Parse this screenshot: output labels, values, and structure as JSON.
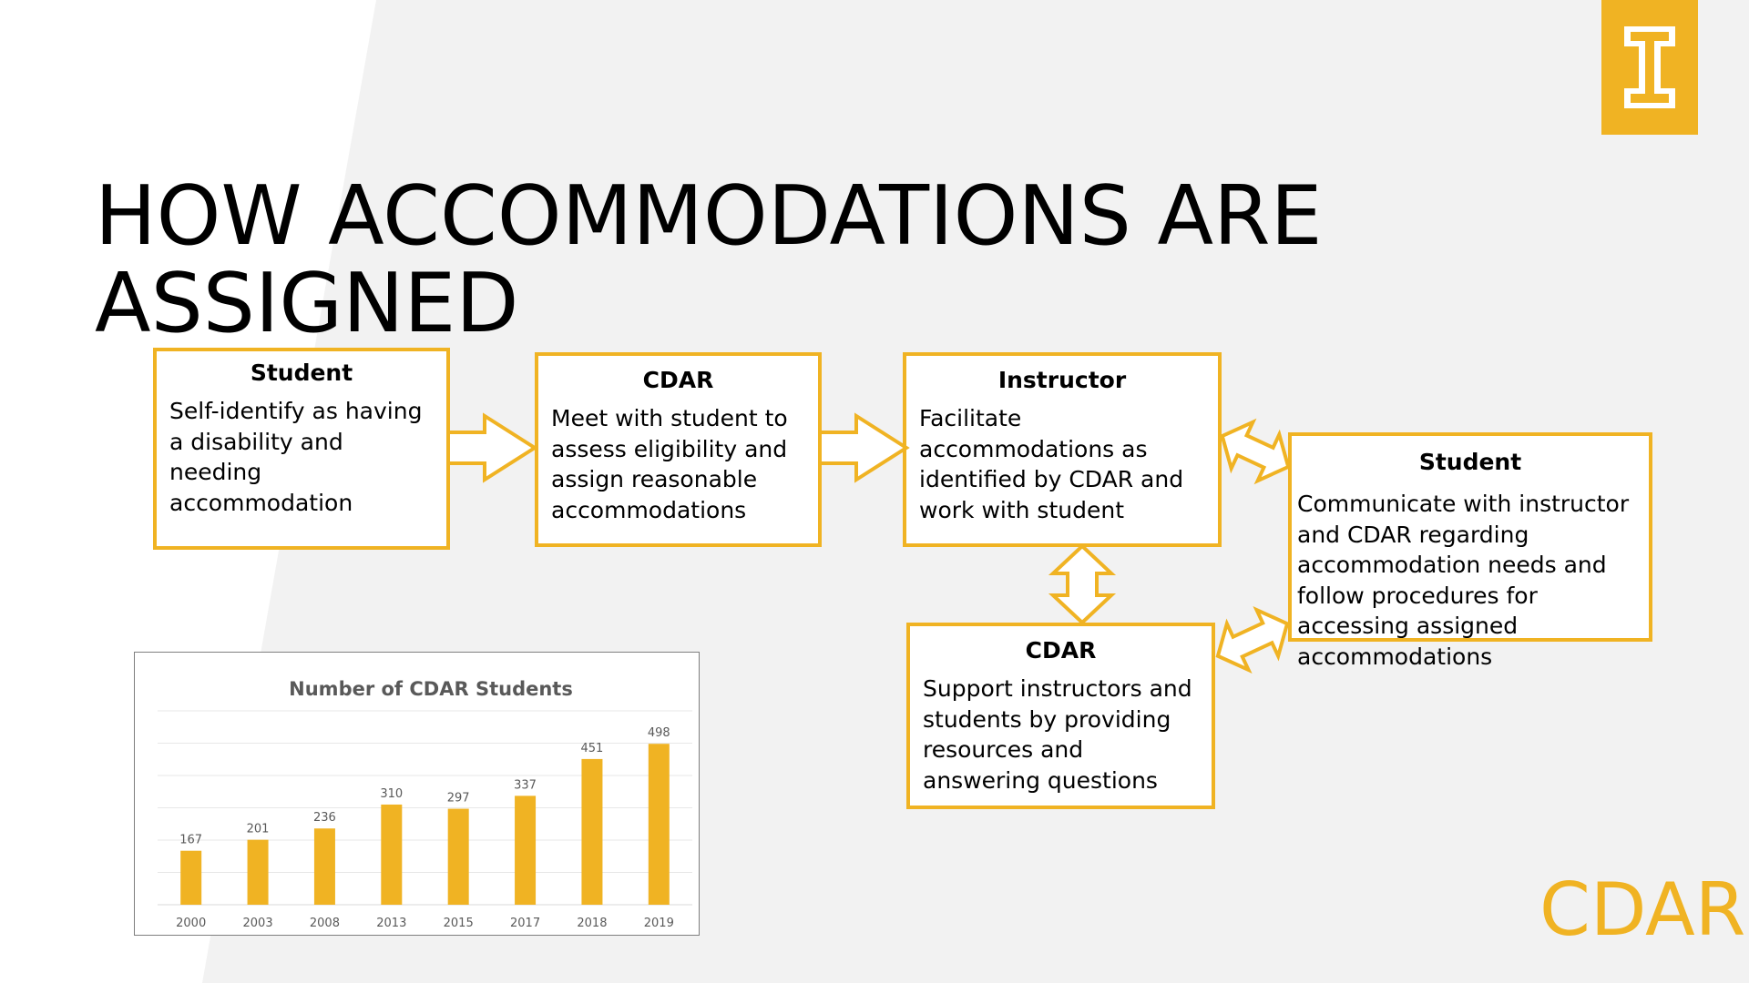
{
  "slide": {
    "title": "HOW ACCOMMODATIONS ARE ASSIGNED",
    "title_lines": [
      "HOW ACCOMMODATIONS ARE",
      "ASSIGNED"
    ],
    "wordmark": "CDAR",
    "logo_letter": "I"
  },
  "colors": {
    "accent": "#F0B323",
    "background": "#ffffff",
    "background_band": "#f2f2f2",
    "text": "#000000"
  },
  "flow": {
    "step1": {
      "heading": "Student",
      "text": "Self-identify as having a disability and needing accommodation"
    },
    "step2": {
      "heading": "CDAR",
      "text": "Meet with student to assess eligibility and assign reasonable accommodations"
    },
    "step3": {
      "heading": "Instructor",
      "text": "Facilitate accommodations as identified by CDAR and work with student"
    },
    "step4": {
      "heading": "Student",
      "text": "Communicate with instructor and CDAR regarding accommodation needs and follow procedures for accessing assigned accommodations"
    },
    "step5": {
      "heading": "CDAR",
      "text": "Support instructors and students by providing resources and answering questions"
    }
  },
  "chart_data": {
    "type": "bar",
    "title": "Number of CDAR Students",
    "categories": [
      "2000",
      "2003",
      "2008",
      "2013",
      "2015",
      "2017",
      "2018",
      "2019"
    ],
    "values": [
      167,
      201,
      236,
      310,
      297,
      337,
      451,
      498
    ],
    "xlabel": "",
    "ylabel": "",
    "ylim": [
      0,
      600
    ],
    "grid": true,
    "data_labels": true,
    "bar_color": "#F0B323"
  }
}
